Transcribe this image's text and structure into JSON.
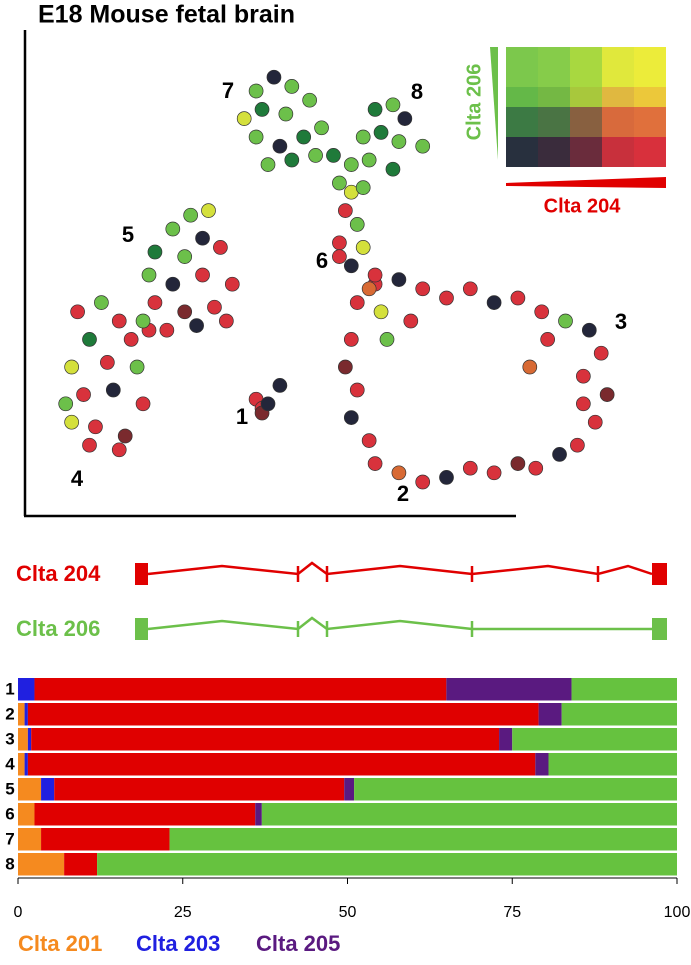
{
  "chart_data": [
    {
      "type": "scatter",
      "title": "E18 Mouse fetal brain",
      "xlim": [
        0,
        100
      ],
      "ylim": [
        0,
        100
      ],
      "colorbar": {
        "x_label": "Clta 204",
        "y_label": "Clta 206"
      },
      "series": [
        {
          "name": "1",
          "x": [
            38,
            39,
            39,
            40,
            42
          ],
          "y": [
            23,
            21,
            20,
            22,
            26
          ],
          "colors": [
            "#d8323c",
            "#d8323c",
            "#7a2a2e",
            "#23263a",
            "#23263a"
          ]
        },
        {
          "name": "2",
          "x": [
            58,
            62,
            66,
            55,
            59,
            54,
            53,
            55,
            54,
            57,
            58,
            62,
            66,
            70,
            74,
            78,
            82,
            85,
            60,
            64
          ],
          "y": [
            48,
            49,
            47,
            44,
            42,
            36,
            30,
            25,
            19,
            14,
            9,
            7,
            5,
            6,
            8,
            7,
            9,
            8,
            36,
            40
          ],
          "colors": [
            "#d8323c",
            "#23263a",
            "#d8323c",
            "#d8323c",
            "#d4e03c",
            "#d8323c",
            "#7a2a2e",
            "#d8323c",
            "#23263a",
            "#d8323c",
            "#d8323c",
            "#d86a34",
            "#d8323c",
            "#23263a",
            "#d8323c",
            "#d8323c",
            "#7a2a2e",
            "#d8323c",
            "#6cc04a",
            "#d8323c"
          ]
        },
        {
          "name": "3",
          "x": [
            70,
            74,
            78,
            82,
            86,
            90,
            94,
            96,
            93,
            97,
            95,
            92,
            89,
            93,
            87,
            84
          ],
          "y": [
            45,
            47,
            44,
            45,
            42,
            40,
            38,
            33,
            28,
            24,
            18,
            13,
            11,
            22,
            36,
            30
          ],
          "colors": [
            "#d8323c",
            "#d8323c",
            "#23263a",
            "#d8323c",
            "#d8323c",
            "#6cc04a",
            "#23263a",
            "#d8323c",
            "#d8323c",
            "#7a2a2e",
            "#d8323c",
            "#d8323c",
            "#23263a",
            "#d8323c",
            "#d8323c",
            "#d86a34"
          ]
        },
        {
          "name": "4",
          "x": [
            8,
            12,
            15,
            10,
            17,
            7,
            13,
            18,
            9,
            14,
            19,
            7,
            11,
            16,
            10,
            15,
            6,
            20
          ],
          "y": [
            42,
            44,
            40,
            36,
            36,
            30,
            31,
            30,
            24,
            25,
            22,
            18,
            17,
            15,
            13,
            12,
            22,
            38
          ],
          "colors": [
            "#d8323c",
            "#6cc04a",
            "#d8323c",
            "#1f7a3a",
            "#d8323c",
            "#d4e03c",
            "#d8323c",
            "#6cc04a",
            "#d8323c",
            "#23263a",
            "#d8323c",
            "#d4e03c",
            "#d8323c",
            "#7a2a2e",
            "#d8323c",
            "#d8323c",
            "#6cc04a",
            "#d8323c"
          ]
        },
        {
          "name": "5",
          "x": [
            27,
            30,
            24,
            29,
            21,
            26,
            32,
            20,
            24,
            29,
            34,
            21,
            26,
            31,
            19,
            23,
            28,
            33
          ],
          "y": [
            63,
            64,
            60,
            58,
            55,
            54,
            56,
            50,
            48,
            50,
            48,
            44,
            42,
            43,
            40,
            38,
            39,
            40
          ],
          "colors": [
            "#6cc04a",
            "#d4e03c",
            "#6cc04a",
            "#23263a",
            "#1f7a3a",
            "#6cc04a",
            "#d8323c",
            "#6cc04a",
            "#23263a",
            "#d8323c",
            "#d8323c",
            "#d8323c",
            "#7a2a2e",
            "#d8323c",
            "#6cc04a",
            "#d8323c",
            "#23263a",
            "#d8323c"
          ]
        },
        {
          "name": "6",
          "x": [
            53,
            55,
            52,
            56,
            54,
            58,
            52,
            57
          ],
          "y": [
            64,
            61,
            57,
            56,
            52,
            50,
            54,
            47
          ],
          "colors": [
            "#d8323c",
            "#6cc04a",
            "#d8323c",
            "#d4e03c",
            "#23263a",
            "#d8323c",
            "#d8323c",
            "#d86a34"
          ]
        },
        {
          "name": "7",
          "x": [
            38,
            41,
            44,
            39,
            43,
            47,
            38,
            42,
            46,
            49,
            40,
            44,
            48,
            36
          ],
          "y": [
            90,
            93,
            91,
            86,
            85,
            88,
            80,
            78,
            80,
            82,
            74,
            75,
            76,
            84
          ],
          "colors": [
            "#6cc04a",
            "#23263a",
            "#6cc04a",
            "#1f7a3a",
            "#6cc04a",
            "#6cc04a",
            "#6cc04a",
            "#23263a",
            "#1f7a3a",
            "#6cc04a",
            "#6cc04a",
            "#1f7a3a",
            "#6cc04a",
            "#d4e03c"
          ]
        },
        {
          "name": "8",
          "x": [
            58,
            61,
            63,
            56,
            59,
            62,
            66,
            54,
            57,
            61,
            52,
            54,
            56,
            51
          ],
          "y": [
            86,
            87,
            84,
            80,
            81,
            79,
            78,
            74,
            75,
            73,
            70,
            68,
            69,
            76
          ],
          "colors": [
            "#1f7a3a",
            "#6cc04a",
            "#23263a",
            "#6cc04a",
            "#1f7a3a",
            "#6cc04a",
            "#6cc04a",
            "#6cc04a",
            "#6cc04a",
            "#1f7a3a",
            "#6cc04a",
            "#d4e03c",
            "#6cc04a",
            "#1f7a3a"
          ]
        }
      ]
    },
    {
      "type": "bar",
      "orientation": "horizontal",
      "stacked": true,
      "categories": [
        "1",
        "2",
        "3",
        "4",
        "5",
        "6",
        "7",
        "8"
      ],
      "xlim": [
        0,
        100
      ],
      "xticks": [
        0,
        25,
        50,
        75,
        100
      ],
      "series": [
        {
          "name": "Clta 201",
          "color": "#f58a1f",
          "values": [
            0,
            1,
            1.5,
            1,
            3.5,
            2.5,
            3.5,
            7
          ]
        },
        {
          "name": "Clta 203",
          "color": "#2020e0",
          "values": [
            2.5,
            0.5,
            0.5,
            0.5,
            2,
            0,
            0,
            0
          ]
        },
        {
          "name": "Clta 204",
          "color": "#e00000",
          "values": [
            62.5,
            77.5,
            71,
            77,
            44,
            33.5,
            19.5,
            5
          ]
        },
        {
          "name": "Clta 205",
          "color": "#5a1a80",
          "values": [
            19,
            3.5,
            2,
            2,
            1.5,
            1,
            0,
            0
          ]
        },
        {
          "name": "Clta 206",
          "color": "#66c23f",
          "values": [
            16,
            17.5,
            25,
            19.5,
            49,
            63,
            77,
            88
          ]
        }
      ]
    }
  ]
}
